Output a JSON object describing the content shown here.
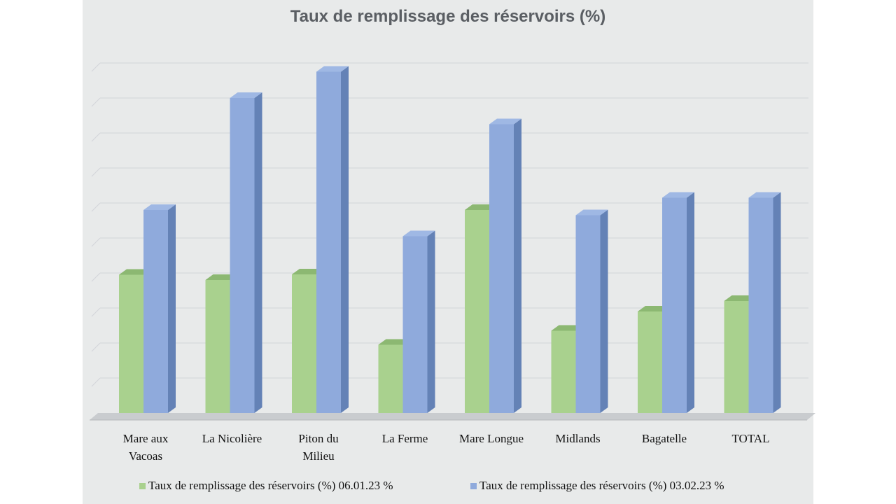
{
  "chart_data": {
    "type": "bar",
    "title": "Taux de remplissage des réservoirs (%)",
    "xlabel": "",
    "ylabel": "",
    "ylim": [
      0,
      100
    ],
    "grid": true,
    "legend_position": "bottom",
    "categories": [
      [
        "Mare aux",
        "Vacoas"
      ],
      [
        "La Nicolière"
      ],
      [
        "Piton du",
        "Milieu"
      ],
      [
        "La Ferme"
      ],
      [
        "Mare Longue"
      ],
      [
        "Midlands"
      ],
      [
        "Bagatelle"
      ],
      [
        "TOTAL"
      ]
    ],
    "series": [
      {
        "name": "Taux de remplissage des réservoirs (%) 06.01.23 %",
        "color": "#a9d18e",
        "values": [
          39.5,
          38,
          39.6,
          19.5,
          58,
          23.5,
          29,
          32
        ]
      },
      {
        "name": "Taux de remplissage des réservoirs (%) 03.02.23 %",
        "color": "#8faadc",
        "values": [
          58,
          90,
          97.5,
          50.5,
          82.5,
          56.5,
          61.5,
          61.5
        ]
      }
    ]
  }
}
